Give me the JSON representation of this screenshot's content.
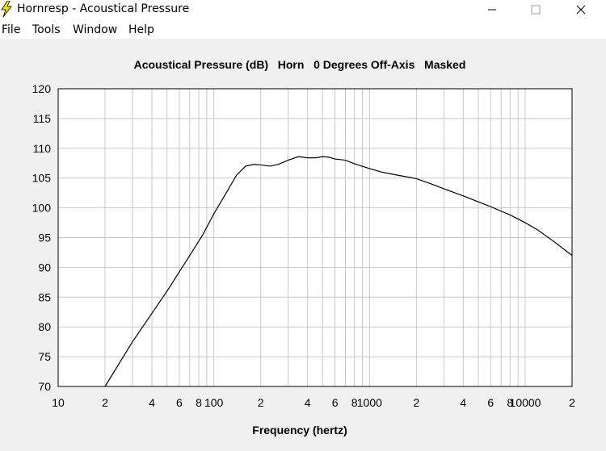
{
  "window": {
    "title": "Hornresp - Acoustical Pressure",
    "icon": "lightning-bolt-icon",
    "controls": {
      "minimize_icon": "minimize-icon",
      "maximize_icon": "maximize-icon",
      "close_icon": "close-icon"
    }
  },
  "menu": {
    "items": [
      "File",
      "Tools",
      "Window",
      "Help"
    ]
  },
  "colors": {
    "plot_bg": "#ffffff",
    "frame_bg": "#f0f0f0",
    "grid": "#c8c8c8",
    "trace": "#000000",
    "icon_yellow": "#f5e100"
  },
  "chart_data": {
    "type": "line",
    "title": "Acoustical Pressure (dB)   Horn   0 Degrees Off-Axis   Masked",
    "xlabel": "Frequency (hertz)",
    "ylabel": "",
    "x_scale": "log",
    "xlim": [
      10,
      20000
    ],
    "ylim": [
      70,
      120
    ],
    "grid": true,
    "y_ticks": [
      120,
      115,
      110,
      105,
      100,
      95,
      90,
      85,
      80,
      75,
      70
    ],
    "x_tick_labels": [
      {
        "x": 10,
        "label": "10"
      },
      {
        "x": 20,
        "label": "2"
      },
      {
        "x": 40,
        "label": "4"
      },
      {
        "x": 60,
        "label": "6"
      },
      {
        "x": 80,
        "label": "8"
      },
      {
        "x": 100,
        "label": "100"
      },
      {
        "x": 200,
        "label": "2"
      },
      {
        "x": 400,
        "label": "4"
      },
      {
        "x": 600,
        "label": "6"
      },
      {
        "x": 800,
        "label": "8"
      },
      {
        "x": 1000,
        "label": "1000"
      },
      {
        "x": 2000,
        "label": "2"
      },
      {
        "x": 4000,
        "label": "4"
      },
      {
        "x": 6000,
        "label": "6"
      },
      {
        "x": 8000,
        "label": "8"
      },
      {
        "x": 10000,
        "label": "10000"
      },
      {
        "x": 20000,
        "label": "2"
      }
    ],
    "series": [
      {
        "points": [
          [
            20,
            70
          ],
          [
            30,
            77.5
          ],
          [
            50,
            86
          ],
          [
            70,
            92
          ],
          [
            85,
            95.5
          ],
          [
            100,
            99
          ],
          [
            120,
            102.5
          ],
          [
            140,
            105.5
          ],
          [
            160,
            107
          ],
          [
            180,
            107.3
          ],
          [
            200,
            107.2
          ],
          [
            230,
            107
          ],
          [
            260,
            107.3
          ],
          [
            300,
            108
          ],
          [
            350,
            108.6
          ],
          [
            400,
            108.4
          ],
          [
            450,
            108.4
          ],
          [
            500,
            108.6
          ],
          [
            550,
            108.5
          ],
          [
            600,
            108.2
          ],
          [
            700,
            108
          ],
          [
            800,
            107.4
          ],
          [
            1000,
            106.6
          ],
          [
            1200,
            106
          ],
          [
            1500,
            105.5
          ],
          [
            2000,
            104.9
          ],
          [
            2500,
            104
          ],
          [
            3000,
            103.2
          ],
          [
            4000,
            102
          ],
          [
            5000,
            101
          ],
          [
            6000,
            100.2
          ],
          [
            8000,
            98.8
          ],
          [
            10000,
            97.5
          ],
          [
            12000,
            96.3
          ],
          [
            15000,
            94.5
          ],
          [
            20000,
            92
          ]
        ]
      }
    ]
  }
}
